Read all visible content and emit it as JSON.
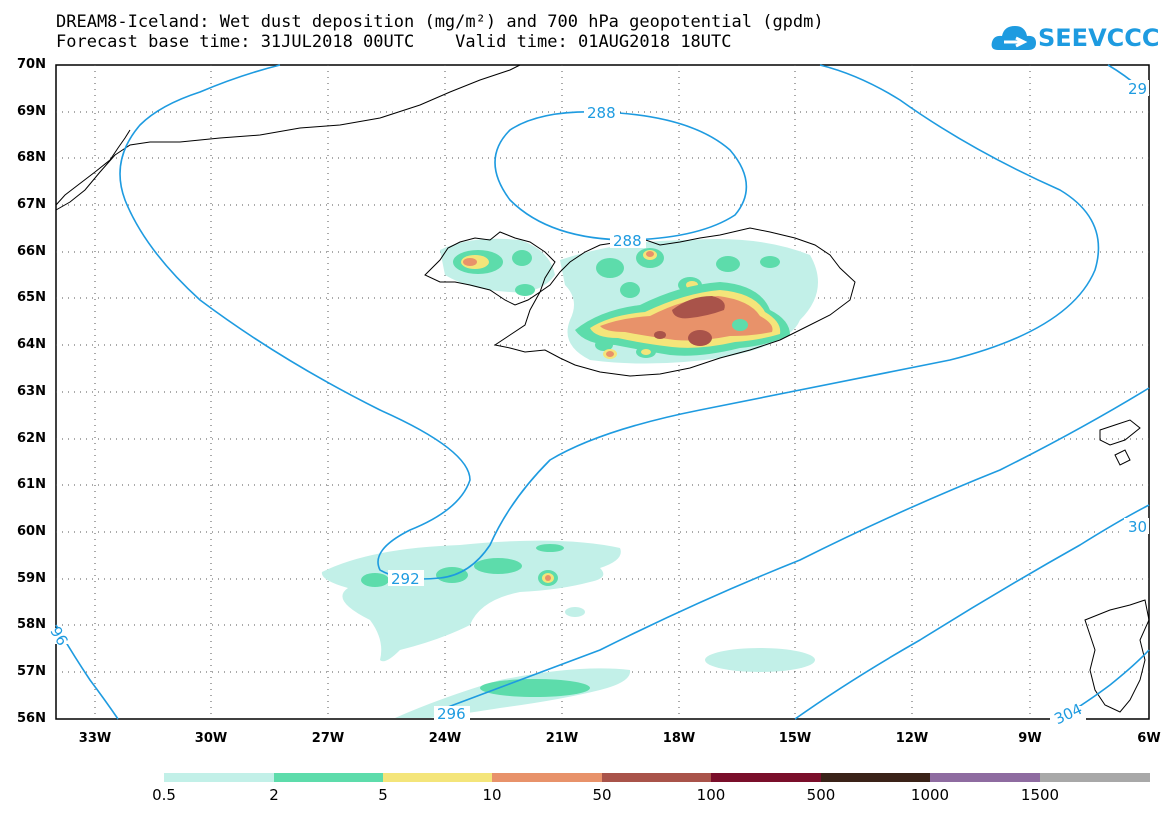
{
  "title": {
    "line1": "DREAM8-Iceland: Wet dust deposition (mg/m²) and 700 hPa geopotential (gpdm)",
    "line2": "Forecast base time: 31JUL2018 00UTC    Valid time: 01AUG2018 18UTC"
  },
  "logo": {
    "text": "SEEVCCC",
    "icon": "cloud-icon"
  },
  "axes": {
    "lat_labels": [
      "70N",
      "69N",
      "68N",
      "67N",
      "66N",
      "65N",
      "64N",
      "63N",
      "62N",
      "61N",
      "60N",
      "59N",
      "58N",
      "57N",
      "56N"
    ],
    "lon_labels": [
      "33W",
      "30W",
      "27W",
      "24W",
      "21W",
      "18W",
      "15W",
      "12W",
      "9W",
      "6W"
    ]
  },
  "contours": {
    "color": "#1e9be0",
    "labels": [
      "288",
      "288",
      "292",
      "296",
      "304",
      "30",
      "29",
      "96"
    ]
  },
  "legend": {
    "labels": [
      "0.5",
      "2",
      "5",
      "10",
      "50",
      "100",
      "500",
      "1000",
      "1500"
    ],
    "colors": [
      "#c2f0e8",
      "#5ddcab",
      "#f4e57a",
      "#e8926a",
      "#a9534a",
      "#7a0e2a",
      "#3a2218",
      "#8e6ba0",
      "#a8a8a8"
    ]
  }
}
